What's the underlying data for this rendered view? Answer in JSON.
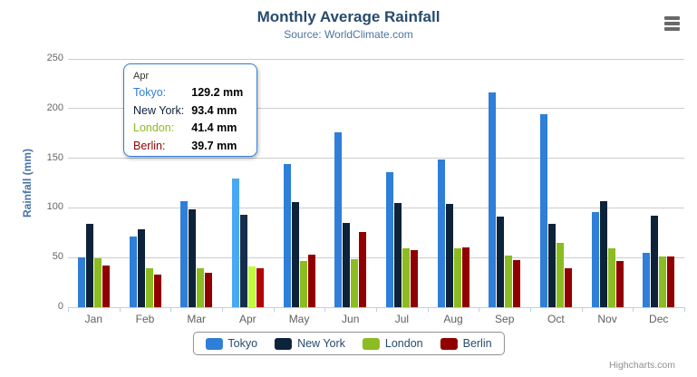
{
  "chart_data": {
    "type": "bar",
    "title": "Monthly Average Rainfall",
    "subtitle": "Source: WorldClimate.com",
    "categories": [
      "Jan",
      "Feb",
      "Mar",
      "Apr",
      "May",
      "Jun",
      "Jul",
      "Aug",
      "Sep",
      "Oct",
      "Nov",
      "Dec"
    ],
    "series": [
      {
        "name": "Tokyo",
        "color": "#2f7ed8",
        "values": [
          49.9,
          71.5,
          106.4,
          129.2,
          144.0,
          176.0,
          135.6,
          148.5,
          216.4,
          194.1,
          95.6,
          54.4
        ]
      },
      {
        "name": "New York",
        "color": "#0d233a",
        "values": [
          83.6,
          78.8,
          98.5,
          93.4,
          106.0,
          84.5,
          105.0,
          104.3,
          91.2,
          83.5,
          106.6,
          92.3
        ]
      },
      {
        "name": "London",
        "color": "#8bbc21",
        "values": [
          48.9,
          38.8,
          39.3,
          41.4,
          47.0,
          48.3,
          59.0,
          59.6,
          52.4,
          65.2,
          59.3,
          51.2
        ]
      },
      {
        "name": "Berlin",
        "color": "#910000",
        "values": [
          42.4,
          33.2,
          34.5,
          39.7,
          52.6,
          75.5,
          57.4,
          60.4,
          47.6,
          39.1,
          46.8,
          51.1
        ]
      }
    ],
    "xlabel": "",
    "ylabel": "Rainfall (mm)",
    "ylim": [
      0,
      250
    ],
    "yticks": [
      0,
      50,
      100,
      150,
      200,
      250
    ],
    "grid": true,
    "legend_position": "bottom-center"
  },
  "tooltip": {
    "header": "Apr",
    "anchor_category": "Apr",
    "value_suffix": " mm",
    "rows": [
      {
        "label": "Tokyo:",
        "value": "129.2 mm",
        "color": "#2f7ed8"
      },
      {
        "label": "New York:",
        "value": "93.4 mm",
        "color": "#0d233a"
      },
      {
        "label": "London:",
        "value": "41.4 mm",
        "color": "#8bbc21"
      },
      {
        "label": "Berlin:",
        "value": "39.7 mm",
        "color": "#910000"
      }
    ],
    "border_color": "#2f7ed8"
  },
  "credits": {
    "label": "Highcharts.com"
  },
  "colors": {
    "title": "#274b6d",
    "subtitle": "#4d759e",
    "axis_title": "#4572a7",
    "axis_labels": "#666666",
    "gridline": "#cccccc",
    "axis_line": "#c0d0e0",
    "legend_border": "#909090",
    "legend_text": "#274b6d"
  }
}
